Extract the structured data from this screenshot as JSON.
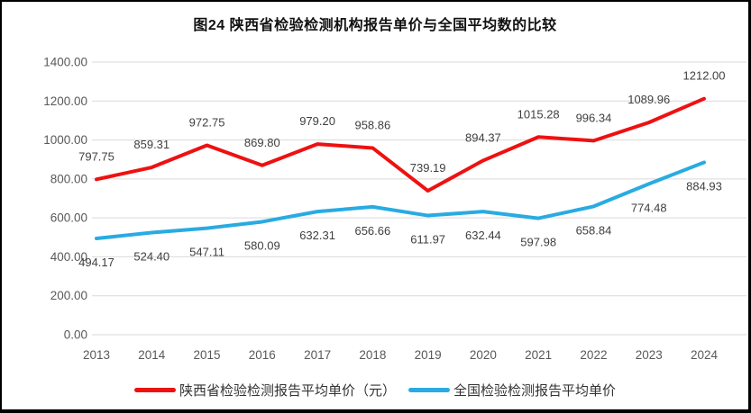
{
  "title": "图24 陕西省检验检测机构报告单价与全国平均数的比较",
  "chart_data": {
    "type": "line",
    "title": "图24 陕西省检验检测机构报告单价与全国平均数的比较",
    "x": [
      "2013",
      "2014",
      "2015",
      "2016",
      "2017",
      "2018",
      "2019",
      "2020",
      "2021",
      "2022",
      "2023",
      "2024"
    ],
    "series": [
      {
        "name": "陕西省检验检测报告平均单价（元）",
        "color": "#ee1111",
        "label_position": "above",
        "values": [
          797.75,
          859.31,
          972.75,
          869.8,
          979.2,
          958.86,
          739.19,
          894.37,
          1015.28,
          996.34,
          1089.96,
          1212.0
        ]
      },
      {
        "name": "全国检验检测报告平均单价",
        "color": "#29abe2",
        "label_position": "below",
        "values": [
          494.17,
          524.4,
          547.11,
          580.09,
          632.31,
          656.66,
          611.97,
          632.44,
          597.98,
          658.84,
          774.48,
          884.93
        ]
      }
    ],
    "ylim": [
      0,
      1400
    ],
    "y_ticks": [
      "0.00",
      "200.00",
      "400.00",
      "600.00",
      "800.00",
      "1000.00",
      "1200.00",
      "1400.00"
    ],
    "value_decimals": 2,
    "grid": true,
    "legend_position": "bottom"
  },
  "styles": {
    "grid_color": "#d9d9d9",
    "tick_color": "#595959",
    "label_color": "#3f3f3f",
    "frame_border_color": "#000000"
  }
}
